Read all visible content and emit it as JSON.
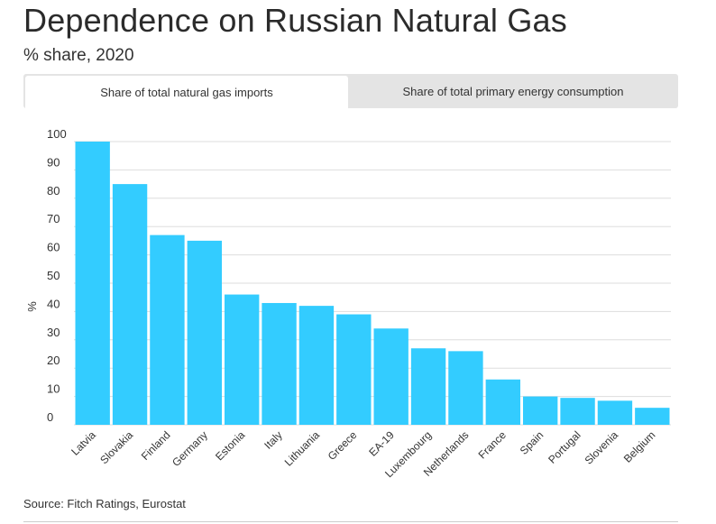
{
  "header": {
    "title": "Dependence on Russian Natural Gas",
    "subtitle": "% share, 2020"
  },
  "tabs": [
    {
      "label": "Share of total natural gas imports",
      "active": true
    },
    {
      "label": "Share of total primary energy consumption",
      "active": false
    }
  ],
  "footer": {
    "source": "Source: Fitch Ratings, Eurostat"
  },
  "colors": {
    "bar": "#33ccff",
    "grid": "#dddddd",
    "tab_background": "#e4e4e4"
  },
  "chart_data": {
    "type": "bar",
    "categories": [
      "Latvia",
      "Slovakia",
      "Finland",
      "Germany",
      "Estonia",
      "Italy",
      "Lithuania",
      "Greece",
      "EA-19",
      "Luxembourg",
      "Netherlands",
      "France",
      "Spain",
      "Portugal",
      "Slovenia",
      "Belgium"
    ],
    "values": [
      100,
      85,
      67,
      65,
      46,
      43,
      42,
      39,
      34,
      27,
      26,
      16,
      10,
      9.5,
      8.5,
      6
    ],
    "ylabel": "%",
    "ylim": [
      0,
      100
    ],
    "yticks": [
      0,
      10,
      20,
      30,
      40,
      50,
      60,
      70,
      80,
      90,
      100
    ],
    "grid": true,
    "legend": "none"
  }
}
